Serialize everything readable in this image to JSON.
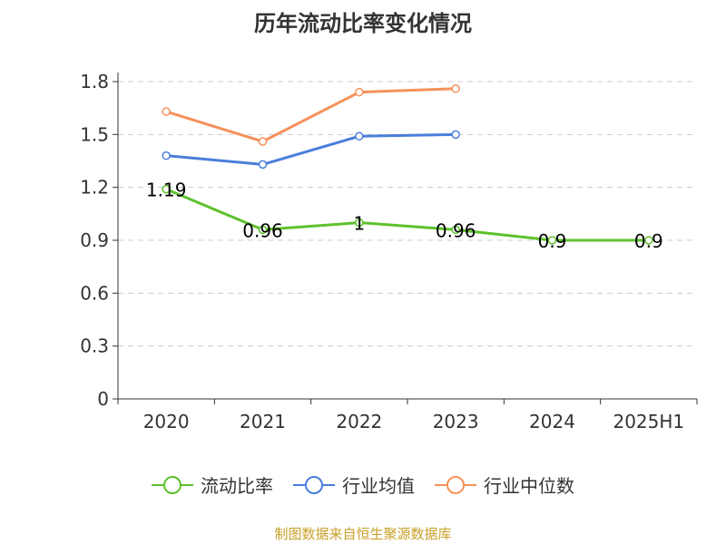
{
  "title": "历年流动比率变化情况",
  "source": "制图数据来自恒生聚源数据库",
  "chart_data": {
    "type": "line",
    "title": "历年流动比率变化情况",
    "categories": [
      "2020",
      "2021",
      "2022",
      "2023",
      "2024",
      "2025H1"
    ],
    "yticks": [
      "0",
      "0.3",
      "0.6",
      "0.9",
      "1.2",
      "1.5",
      "1.8"
    ],
    "ylim": [
      0,
      1.8
    ],
    "grid": true,
    "legend_position": "bottom",
    "series": [
      {
        "name": "流动比率",
        "color": "#5ec12c",
        "values": [
          1.19,
          0.96,
          1.0,
          0.96,
          0.9,
          0.9
        ],
        "labels": [
          "1.19",
          "0.96",
          "1",
          "0.96",
          "0.9",
          "0.9"
        ],
        "show_labels": true
      },
      {
        "name": "行业均值",
        "color": "#4a7fdb",
        "values": [
          1.38,
          1.33,
          1.49,
          1.5,
          null,
          null
        ],
        "show_labels": false
      },
      {
        "name": "行业中位数",
        "color": "#f5915a",
        "values": [
          1.63,
          1.46,
          1.74,
          1.76,
          null,
          null
        ],
        "show_labels": false
      }
    ]
  }
}
